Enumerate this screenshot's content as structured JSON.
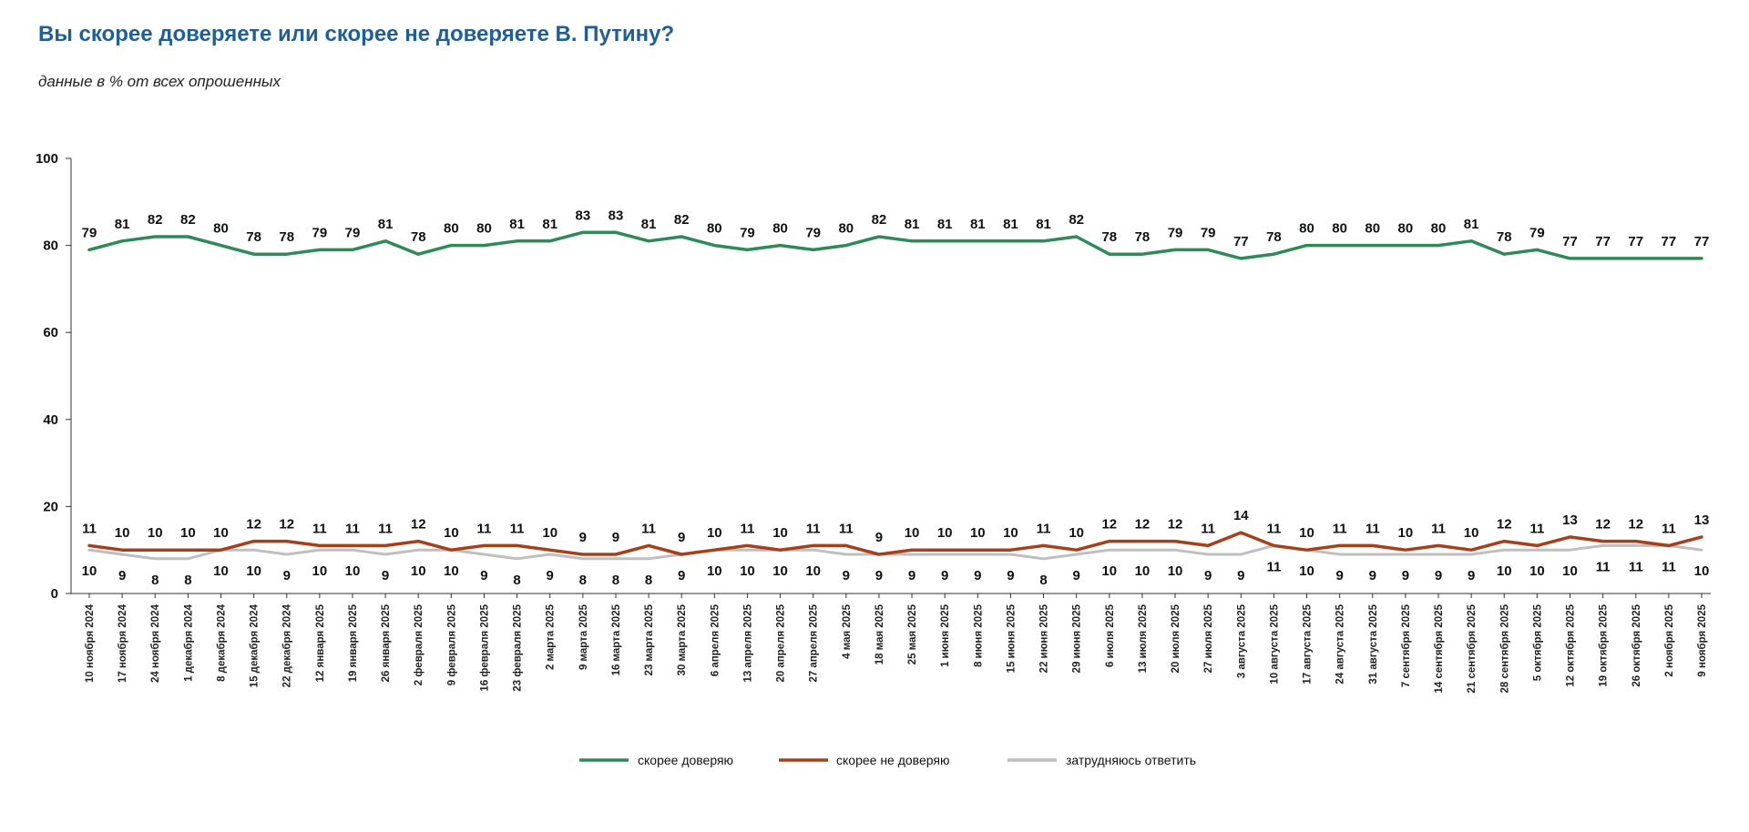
{
  "header": {
    "title": "Вы скорее доверяете или скорее не доверяете В. Путину?",
    "subtitle": "данные в % от всех опрошенных"
  },
  "chart_data": {
    "type": "line",
    "title": "Вы скорее доверяете или скорее не доверяете В. Путину?",
    "subtitle": "данные в % от всех опрошенных",
    "ylim": [
      0,
      100
    ],
    "yticks": [
      0,
      20,
      40,
      60,
      80,
      100
    ],
    "grid": false,
    "legend_position": "bottom-center",
    "categories": [
      "10 ноября 2024",
      "17 ноября 2024",
      "24 ноября 2024",
      "1 декабря 2024",
      "8 декабря 2024",
      "15 декабря 2024",
      "22 декабря 2024",
      "12 января 2025",
      "19 января 2025",
      "26 января 2025",
      "2 февраля 2025",
      "9 февраля 2025",
      "16 февраля 2025",
      "23 февраля 2025",
      "2 марта 2025",
      "9 марта 2025",
      "16 марта 2025",
      "23 марта 2025",
      "30 марта 2025",
      "6 апреля 2025",
      "13 апреля 2025",
      "20 апреля 2025",
      "27 апреля 2025",
      "4 мая 2025",
      "18 мая 2025",
      "25 мая 2025",
      "1 июня 2025",
      "8 июня 2025",
      "15 июня 2025",
      "22 июня 2025",
      "29 июня 2025",
      "6 июля 2025",
      "13 июля 2025",
      "20 июля 2025",
      "27 июля 2025",
      "3 августа 2025",
      "10 августа 2025",
      "17 августа 2025",
      "24 августа 2025",
      "31 августа 2025",
      "7 сентября 2025",
      "14 сентября 2025",
      "21 сентября 2025",
      "28 сентября 2025",
      "5 октября 2025",
      "12 октября 2025",
      "19 октября 2025",
      "26 октября 2025",
      "2 ноября 2025",
      "9 ноября 2025"
    ],
    "series": [
      {
        "name": "скорее доверяю",
        "color": "#2e8b57",
        "label_position": "above",
        "values": [
          79,
          81,
          82,
          82,
          80,
          78,
          78,
          79,
          79,
          81,
          78,
          80,
          80,
          81,
          81,
          83,
          83,
          81,
          82,
          80,
          79,
          80,
          79,
          80,
          82,
          81,
          81,
          81,
          81,
          81,
          82,
          78,
          78,
          79,
          79,
          77,
          78,
          80,
          80,
          80,
          80,
          80,
          81,
          78,
          79,
          77,
          77,
          77,
          77,
          77
        ]
      },
      {
        "name": "скорее не доверяю",
        "color": "#a5401b",
        "label_position": "above",
        "values": [
          11,
          10,
          10,
          10,
          10,
          12,
          12,
          11,
          11,
          11,
          12,
          10,
          11,
          11,
          10,
          9,
          9,
          11,
          9,
          10,
          11,
          10,
          11,
          11,
          9,
          10,
          10,
          10,
          10,
          11,
          10,
          12,
          12,
          12,
          11,
          14,
          11,
          10,
          11,
          11,
          10,
          11,
          10,
          12,
          11,
          13,
          12,
          12,
          11,
          13
        ]
      },
      {
        "name": "затрудняюсь ответить",
        "color": "#bfbfbf",
        "label_position": "below",
        "values": [
          10,
          9,
          8,
          8,
          10,
          10,
          9,
          10,
          10,
          9,
          10,
          10,
          9,
          8,
          9,
          8,
          8,
          8,
          9,
          10,
          10,
          10,
          10,
          9,
          9,
          9,
          9,
          9,
          9,
          8,
          9,
          10,
          10,
          10,
          9,
          9,
          11,
          10,
          9,
          9,
          9,
          9,
          9,
          10,
          10,
          10,
          11,
          11,
          11,
          10
        ]
      }
    ]
  }
}
